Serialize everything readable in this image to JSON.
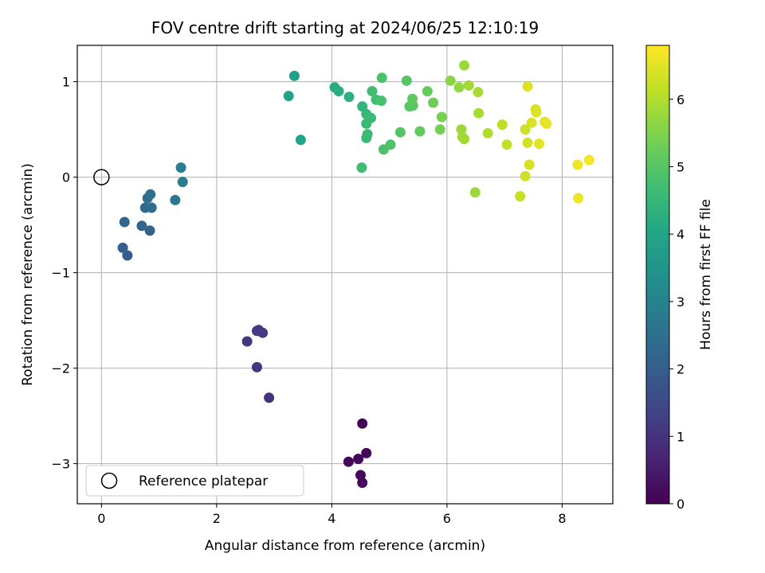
{
  "chart_data": {
    "type": "scatter",
    "title": "FOV centre drift starting at 2024/06/25 12:10:19",
    "xlabel": "Angular distance from reference (arcmin)",
    "ylabel": "Rotation from reference (arcmin)",
    "colorbar_label": "Hours from first FF file",
    "colormap": "viridis",
    "xlim": [
      -0.42,
      8.88
    ],
    "ylim": [
      -3.42,
      1.38
    ],
    "clim": [
      0,
      6.8
    ],
    "xticks": [
      0,
      2,
      4,
      6,
      8
    ],
    "yticks": [
      -3,
      -2,
      -1,
      0,
      1
    ],
    "colorbar_ticks": [
      0,
      1,
      2,
      3,
      4,
      5,
      6
    ],
    "grid": true,
    "legend": {
      "placement": "lower-left",
      "entries": [
        "Reference platepar"
      ]
    },
    "reference_point": {
      "x": 0,
      "y": 0
    },
    "points": [
      {
        "x": 4.53,
        "y": -2.58,
        "c": 0.05
      },
      {
        "x": 4.6,
        "y": -2.89,
        "c": 0.1
      },
      {
        "x": 4.46,
        "y": -2.95,
        "c": 0.12
      },
      {
        "x": 4.29,
        "y": -2.98,
        "c": 0.15
      },
      {
        "x": 4.5,
        "y": -3.12,
        "c": 0.18
      },
      {
        "x": 4.53,
        "y": -3.2,
        "c": 0.2
      },
      {
        "x": 2.91,
        "y": -2.31,
        "c": 1.0
      },
      {
        "x": 2.7,
        "y": -1.99,
        "c": 1.05
      },
      {
        "x": 2.53,
        "y": -1.72,
        "c": 1.1
      },
      {
        "x": 2.8,
        "y": -1.63,
        "c": 1.15
      },
      {
        "x": 2.7,
        "y": -1.61,
        "c": 1.15
      },
      {
        "x": 2.73,
        "y": -1.6,
        "c": 1.18
      },
      {
        "x": 0.45,
        "y": -0.82,
        "c": 2.0
      },
      {
        "x": 0.37,
        "y": -0.74,
        "c": 2.05
      },
      {
        "x": 0.84,
        "y": -0.56,
        "c": 2.15
      },
      {
        "x": 0.7,
        "y": -0.51,
        "c": 2.2
      },
      {
        "x": 0.4,
        "y": -0.47,
        "c": 2.25
      },
      {
        "x": 0.76,
        "y": -0.32,
        "c": 2.35
      },
      {
        "x": 0.87,
        "y": -0.32,
        "c": 2.4
      },
      {
        "x": 0.8,
        "y": -0.22,
        "c": 2.45
      },
      {
        "x": 0.85,
        "y": -0.18,
        "c": 2.5
      },
      {
        "x": 1.28,
        "y": -0.24,
        "c": 2.7
      },
      {
        "x": 1.41,
        "y": -0.05,
        "c": 2.8
      },
      {
        "x": 1.38,
        "y": 0.1,
        "c": 2.85
      },
      {
        "x": 3.35,
        "y": 1.06,
        "c": 3.85
      },
      {
        "x": 3.25,
        "y": 0.85,
        "c": 3.9
      },
      {
        "x": 3.46,
        "y": 0.39,
        "c": 3.95
      },
      {
        "x": 4.05,
        "y": 0.94,
        "c": 4.2
      },
      {
        "x": 4.12,
        "y": 0.9,
        "c": 4.25
      },
      {
        "x": 4.3,
        "y": 0.84,
        "c": 4.3
      },
      {
        "x": 4.53,
        "y": 0.74,
        "c": 4.45
      },
      {
        "x": 4.6,
        "y": 0.66,
        "c": 4.5
      },
      {
        "x": 4.68,
        "y": 0.62,
        "c": 4.55
      },
      {
        "x": 4.6,
        "y": 0.56,
        "c": 4.55
      },
      {
        "x": 4.62,
        "y": 0.45,
        "c": 4.6
      },
      {
        "x": 4.6,
        "y": 0.41,
        "c": 4.6
      },
      {
        "x": 4.52,
        "y": 0.1,
        "c": 4.65
      },
      {
        "x": 4.7,
        "y": 0.9,
        "c": 4.7
      },
      {
        "x": 4.77,
        "y": 0.81,
        "c": 4.75
      },
      {
        "x": 4.86,
        "y": 0.8,
        "c": 4.8
      },
      {
        "x": 4.87,
        "y": 1.04,
        "c": 4.85
      },
      {
        "x": 4.9,
        "y": 0.29,
        "c": 4.85
      },
      {
        "x": 5.02,
        "y": 0.34,
        "c": 4.9
      },
      {
        "x": 5.19,
        "y": 0.47,
        "c": 4.95
      },
      {
        "x": 5.3,
        "y": 1.01,
        "c": 5.0
      },
      {
        "x": 5.35,
        "y": 0.74,
        "c": 5.05
      },
      {
        "x": 5.41,
        "y": 0.75,
        "c": 5.05
      },
      {
        "x": 5.4,
        "y": 0.82,
        "c": 5.1
      },
      {
        "x": 5.53,
        "y": 0.48,
        "c": 5.15
      },
      {
        "x": 5.66,
        "y": 0.9,
        "c": 5.2
      },
      {
        "x": 5.76,
        "y": 0.78,
        "c": 5.3
      },
      {
        "x": 5.88,
        "y": 0.5,
        "c": 5.35
      },
      {
        "x": 5.91,
        "y": 0.63,
        "c": 5.4
      },
      {
        "x": 6.06,
        "y": 1.01,
        "c": 5.6
      },
      {
        "x": 6.21,
        "y": 0.94,
        "c": 5.7
      },
      {
        "x": 6.3,
        "y": 1.17,
        "c": 5.8
      },
      {
        "x": 6.38,
        "y": 0.96,
        "c": 5.85
      },
      {
        "x": 6.25,
        "y": 0.5,
        "c": 5.8
      },
      {
        "x": 6.27,
        "y": 0.42,
        "c": 5.85
      },
      {
        "x": 6.3,
        "y": 0.4,
        "c": 5.85
      },
      {
        "x": 6.49,
        "y": -0.16,
        "c": 5.8
      },
      {
        "x": 6.54,
        "y": 0.89,
        "c": 5.9
      },
      {
        "x": 6.55,
        "y": 0.67,
        "c": 5.9
      },
      {
        "x": 6.71,
        "y": 0.46,
        "c": 6.0
      },
      {
        "x": 6.96,
        "y": 0.55,
        "c": 6.1
      },
      {
        "x": 7.04,
        "y": 0.34,
        "c": 6.15
      },
      {
        "x": 7.27,
        "y": -0.2,
        "c": 6.2
      },
      {
        "x": 7.36,
        "y": 0.5,
        "c": 6.25
      },
      {
        "x": 7.36,
        "y": 0.01,
        "c": 6.3
      },
      {
        "x": 7.4,
        "y": 0.36,
        "c": 6.35
      },
      {
        "x": 7.43,
        "y": 0.13,
        "c": 6.4
      },
      {
        "x": 7.4,
        "y": 0.95,
        "c": 6.45
      },
      {
        "x": 7.47,
        "y": 0.57,
        "c": 6.4
      },
      {
        "x": 7.54,
        "y": 0.71,
        "c": 6.45
      },
      {
        "x": 7.55,
        "y": 0.68,
        "c": 6.45
      },
      {
        "x": 7.6,
        "y": 0.35,
        "c": 6.5
      },
      {
        "x": 7.7,
        "y": 0.58,
        "c": 6.5
      },
      {
        "x": 7.73,
        "y": 0.56,
        "c": 6.55
      },
      {
        "x": 8.27,
        "y": 0.13,
        "c": 6.65
      },
      {
        "x": 8.28,
        "y": -0.22,
        "c": 6.65
      },
      {
        "x": 8.47,
        "y": 0.18,
        "c": 6.7
      }
    ]
  }
}
